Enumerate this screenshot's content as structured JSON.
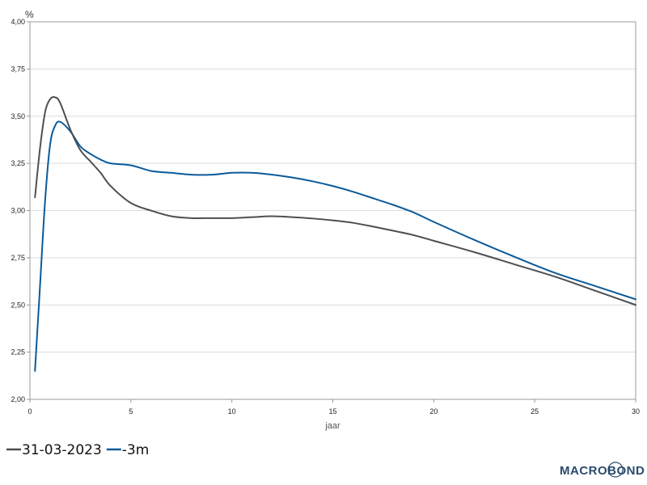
{
  "chart_data": {
    "type": "line",
    "unit": "%",
    "xlabel": "jaar",
    "ylabel": "",
    "xlim": [
      0,
      30
    ],
    "ylim": [
      2.0,
      4.0
    ],
    "x_ticks": [
      0,
      5,
      10,
      15,
      20,
      25,
      30
    ],
    "y_ticks": [
      2.0,
      2.25,
      2.5,
      2.75,
      3.0,
      3.25,
      3.5,
      3.75,
      4.0
    ],
    "y_tick_labels": [
      "2,00",
      "2,25",
      "2,50",
      "2,75",
      "3,00",
      "3,25",
      "3,50",
      "3,75",
      "4,00"
    ],
    "x_tick_labels": [
      "0",
      "5",
      "10",
      "15",
      "20",
      "25",
      "30"
    ],
    "grid": "horizontal",
    "legend_position": "bottom-left",
    "series": [
      {
        "name": "31-03-2023",
        "color": "#4d4f52",
        "x": [
          0.25,
          0.5,
          0.75,
          1.0,
          1.25,
          1.5,
          2.0,
          2.5,
          3.0,
          3.5,
          4.0,
          5.0,
          6.0,
          7.0,
          8.0,
          9.0,
          10.0,
          11.0,
          12.0,
          13.0,
          14.0,
          15.0,
          16.0,
          17.0,
          18.0,
          19.0,
          20.0,
          22.0,
          24.0,
          26.0,
          28.0,
          30.0
        ],
        "values": [
          3.07,
          3.33,
          3.52,
          3.59,
          3.6,
          3.57,
          3.43,
          3.32,
          3.26,
          3.2,
          3.13,
          3.04,
          3.0,
          2.97,
          2.96,
          2.96,
          2.96,
          2.965,
          2.97,
          2.965,
          2.958,
          2.948,
          2.935,
          2.915,
          2.893,
          2.87,
          2.84,
          2.78,
          2.715,
          2.65,
          2.575,
          2.5
        ]
      },
      {
        "name": "-3m",
        "color": "#0b5a9a",
        "x": [
          0.25,
          0.5,
          0.75,
          1.0,
          1.25,
          1.5,
          2.0,
          2.5,
          3.0,
          3.5,
          4.0,
          5.0,
          6.0,
          7.0,
          8.0,
          9.0,
          10.0,
          11.0,
          12.0,
          13.0,
          14.0,
          15.0,
          16.0,
          17.0,
          18.0,
          19.0,
          20.0,
          22.0,
          24.0,
          26.0,
          28.0,
          30.0
        ],
        "values": [
          2.15,
          2.6,
          3.05,
          3.35,
          3.45,
          3.47,
          3.42,
          3.34,
          3.3,
          3.27,
          3.25,
          3.24,
          3.21,
          3.2,
          3.19,
          3.19,
          3.2,
          3.2,
          3.19,
          3.175,
          3.155,
          3.13,
          3.1,
          3.065,
          3.03,
          2.99,
          2.94,
          2.845,
          2.755,
          2.67,
          2.6,
          2.53
        ]
      }
    ]
  },
  "branding": {
    "logo_text": "MACROBOND"
  }
}
